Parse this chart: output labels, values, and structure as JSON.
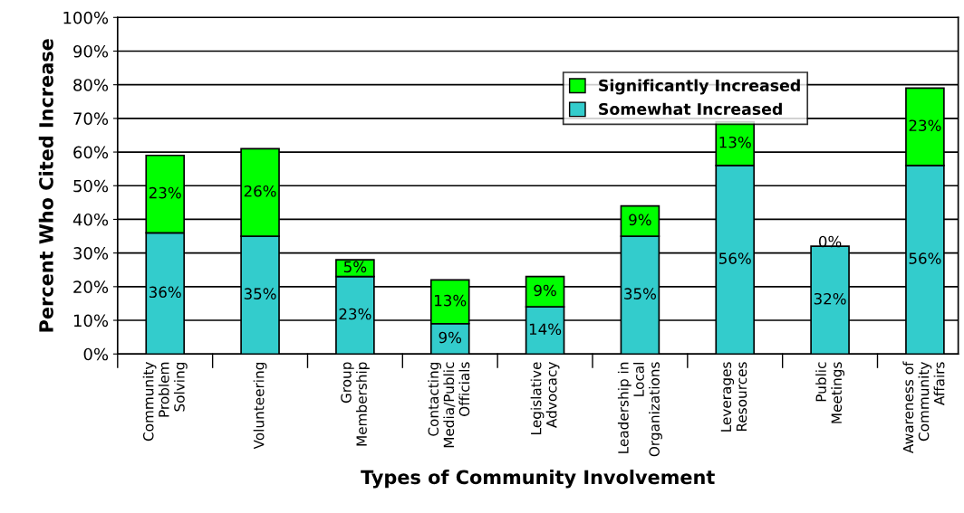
{
  "chart_data": {
    "type": "bar",
    "stacked": true,
    "xlabel": "Types of Community Involvement",
    "ylabel": "Percent Who Cited Increase",
    "categories": [
      "Community\nProblem\nSolving",
      "Volunteering",
      "Group\nMembership",
      "Contacting\nMedia/Public\nOfficials",
      "Legislative\nAdvocacy",
      "Leadership in\nLocal\nOrganizations",
      "Leverages\nResources",
      "Public\nMeetings",
      "Awareness of\nCommunity\nAffairs"
    ],
    "series": [
      {
        "name": "Somewhat Increased",
        "color": "#33cccc",
        "values": [
          36,
          35,
          23,
          9,
          14,
          35,
          56,
          32,
          56
        ],
        "value_labels": [
          "36%",
          "35%",
          "23%",
          "9%",
          "14%",
          "35%",
          "56%",
          "32%",
          "56%"
        ]
      },
      {
        "name": "Significantly Increased",
        "color": "#00ff00",
        "values": [
          23,
          26,
          5,
          13,
          9,
          9,
          13,
          0,
          23
        ],
        "value_labels": [
          "23%",
          "26%",
          "5%",
          "13%",
          "9%",
          "9%",
          "13%",
          "0%",
          "23%"
        ]
      }
    ],
    "ylim": [
      0,
      100
    ],
    "yticks": [
      {
        "value": 0,
        "label": "0%"
      },
      {
        "value": 10,
        "label": "10%"
      },
      {
        "value": 20,
        "label": "20%"
      },
      {
        "value": 30,
        "label": "30%"
      },
      {
        "value": 40,
        "label": "40%"
      },
      {
        "value": 50,
        "label": "50%"
      },
      {
        "value": 60,
        "label": "60%"
      },
      {
        "value": 70,
        "label": "70%"
      },
      {
        "value": 80,
        "label": "80%"
      },
      {
        "value": 90,
        "label": "90%"
      },
      {
        "value": 100,
        "label": "100%"
      }
    ],
    "grid": "y",
    "legend": "top right"
  }
}
